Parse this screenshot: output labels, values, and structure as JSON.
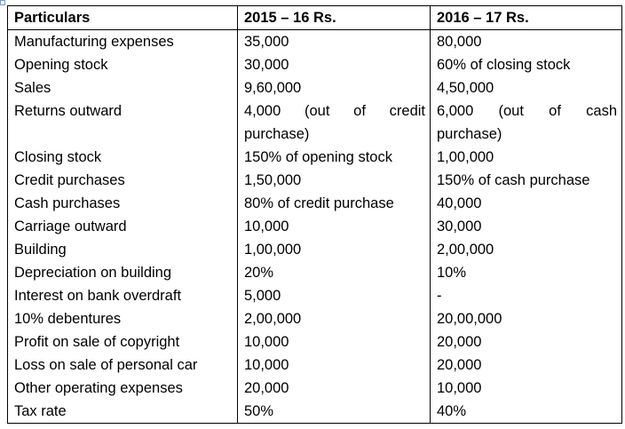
{
  "headers": [
    "Particulars",
    "2015 – 16  Rs.",
    "2016 – 17  Rs."
  ],
  "rows": [
    [
      "Manufacturing expenses",
      "35,000",
      "80,000"
    ],
    [
      "Opening stock",
      "30,000",
      "60% of closing stock"
    ],
    [
      "Sales",
      "9,60,000",
      "4,50,000"
    ],
    [
      "Returns outward",
      "4,000 (out of credit purchase)",
      "6,000 (out of cash purchase)"
    ],
    [
      "Closing stock",
      "150% of opening stock",
      "1,00,000"
    ],
    [
      "Credit purchases",
      "1,50,000",
      "150% of cash purchase"
    ],
    [
      "Cash purchases",
      "80% of credit purchase",
      "40,000"
    ],
    [
      "Carriage outward",
      "10,000",
      "30,000"
    ],
    [
      "Building",
      "1,00,000",
      "2,00,000"
    ],
    [
      "Depreciation on building",
      "20%",
      "10%"
    ],
    [
      "Interest on bank overdraft",
      "5,000",
      "-"
    ],
    [
      "10% debentures",
      "2,00,000",
      "20,00,000"
    ],
    [
      "Profit on sale of copyright",
      "10,000",
      "20,000"
    ],
    [
      "Loss on sale of personal car",
      "10,000",
      "20,000"
    ],
    [
      "Other operating expenses",
      "20,000",
      "10,000"
    ],
    [
      "Tax rate",
      "50%",
      "40%"
    ]
  ]
}
